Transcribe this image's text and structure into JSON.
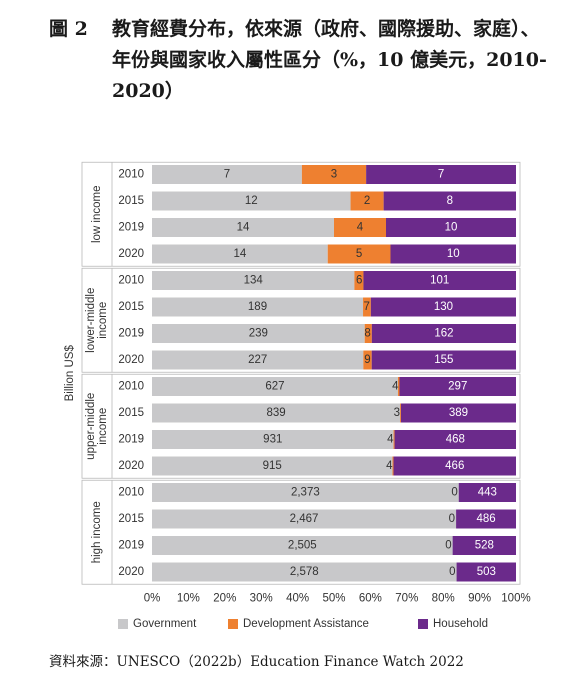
{
  "title": {
    "figure_number": "圖 2",
    "text": "教育經費分布，依來源（政府、國際援助、家庭）、年份與國家收入屬性區分（%，10 億美元，2010-2020）"
  },
  "source": "資料來源：UNESCO（2022b）Education Finance Watch 2022",
  "chart_data": {
    "type": "bar",
    "orientation": "horizontal",
    "stacking": "percent",
    "ylabel": "Billion US$",
    "xlim": [
      0,
      100
    ],
    "x_ticks": [
      "0%",
      "10%",
      "20%",
      "30%",
      "40%",
      "50%",
      "60%",
      "70%",
      "80%",
      "90%",
      "100%"
    ],
    "legend_position": "bottom",
    "series": [
      {
        "name": "Government",
        "color": "#c8c8ca"
      },
      {
        "name": "Development Assistance",
        "color": "#ee8030"
      },
      {
        "name": "Household",
        "color": "#6b2a8b"
      }
    ],
    "groups": [
      {
        "name": "low income",
        "rows": [
          {
            "year": "2010",
            "values": [
              7,
              3,
              7
            ]
          },
          {
            "year": "2015",
            "values": [
              12,
              2,
              8
            ]
          },
          {
            "year": "2019",
            "values": [
              14,
              4,
              10
            ]
          },
          {
            "year": "2020",
            "values": [
              14,
              5,
              10
            ]
          }
        ]
      },
      {
        "name": "lower-middle income",
        "rows": [
          {
            "year": "2010",
            "values": [
              134,
              6,
              101
            ]
          },
          {
            "year": "2015",
            "values": [
              189,
              7,
              130
            ]
          },
          {
            "year": "2019",
            "values": [
              239,
              8,
              162
            ]
          },
          {
            "year": "2020",
            "values": [
              227,
              9,
              155
            ]
          }
        ]
      },
      {
        "name": "upper-middle income",
        "rows": [
          {
            "year": "2010",
            "values": [
              627,
              4,
              297
            ]
          },
          {
            "year": "2015",
            "values": [
              839,
              3,
              389
            ]
          },
          {
            "year": "2019",
            "values": [
              931,
              4,
              468
            ]
          },
          {
            "year": "2020",
            "values": [
              915,
              4,
              466
            ]
          }
        ]
      },
      {
        "name": "high income",
        "rows": [
          {
            "year": "2010",
            "values": [
              2373,
              0,
              443
            ]
          },
          {
            "year": "2015",
            "values": [
              2467,
              0,
              486
            ]
          },
          {
            "year": "2019",
            "values": [
              2505,
              0,
              528
            ]
          },
          {
            "year": "2020",
            "values": [
              2578,
              0,
              503
            ]
          }
        ]
      }
    ]
  }
}
